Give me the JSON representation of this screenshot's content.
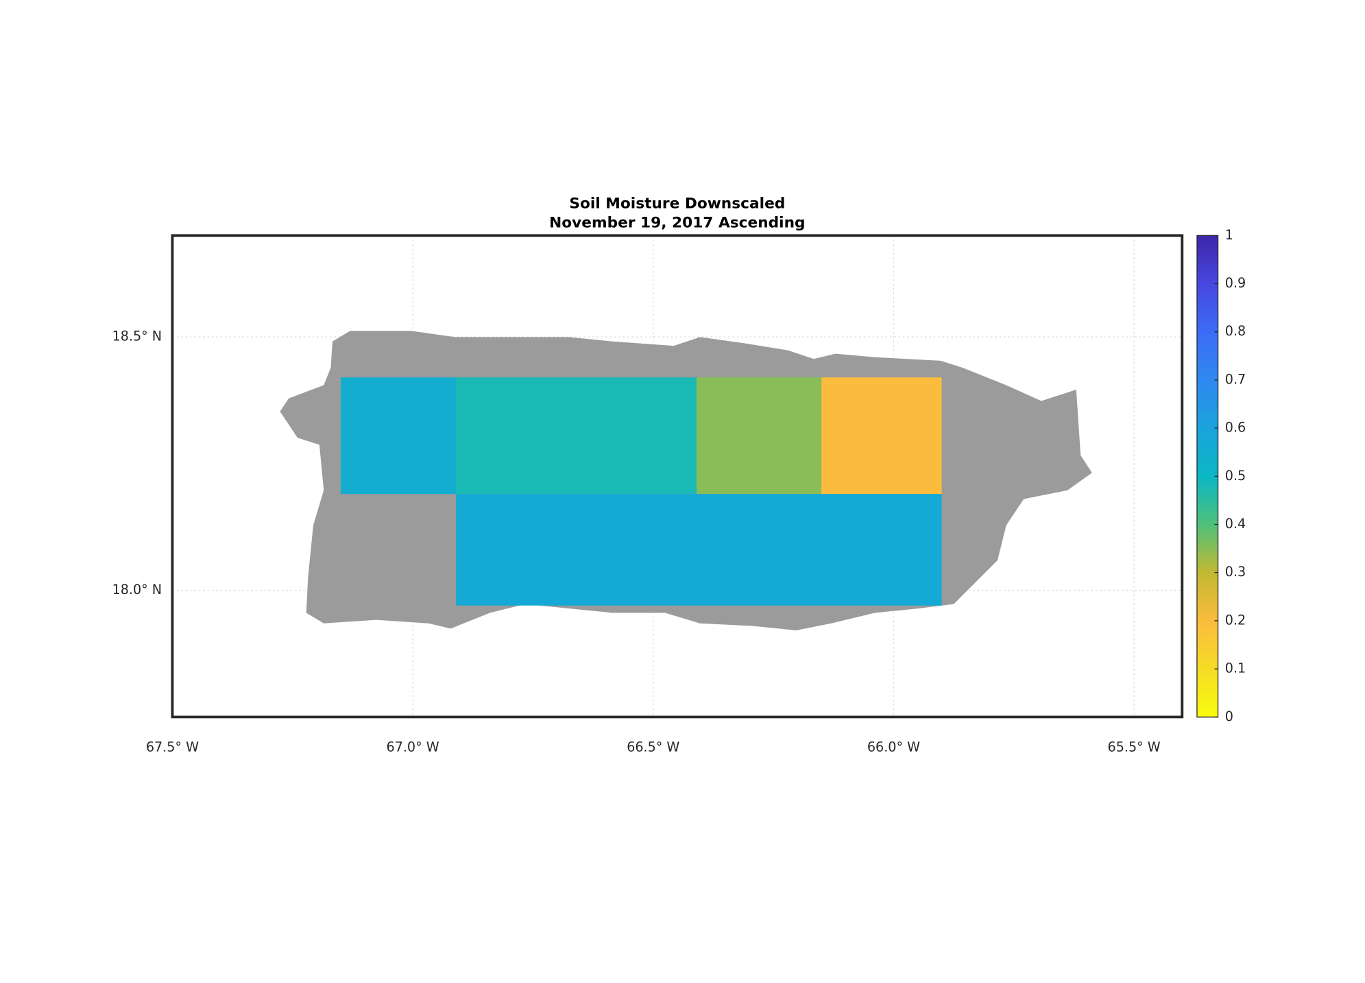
{
  "chart_data": {
    "type": "map",
    "title": "Soil Moisture Downscaled",
    "subtitle": "November 19, 2017 Ascending",
    "xlim": [
      -67.5,
      -65.4
    ],
    "ylim": [
      17.75,
      18.7
    ],
    "xticks": [
      {
        "value": -67.5,
        "label": "67.5° W"
      },
      {
        "value": -67.0,
        "label": "67.0° W"
      },
      {
        "value": -66.5,
        "label": "66.5° W"
      },
      {
        "value": -66.0,
        "label": "66.0° W"
      },
      {
        "value": -65.5,
        "label": "65.5° W"
      }
    ],
    "yticks": [
      {
        "value": 18.0,
        "label": "18.0° N"
      },
      {
        "value": 18.5,
        "label": "18.5° N"
      }
    ],
    "grid": true,
    "land_color": "#9b9b9b",
    "tiles": [
      {
        "lon": [
          -67.15,
          -66.91
        ],
        "lat": [
          18.19,
          18.42
        ],
        "value": 0.55
      },
      {
        "lon": [
          -66.91,
          -66.41
        ],
        "lat": [
          18.19,
          18.42
        ],
        "value": 0.48
      },
      {
        "lon": [
          -66.41,
          -66.15
        ],
        "lat": [
          18.19,
          18.42
        ],
        "value": 0.35
      },
      {
        "lon": [
          -66.15,
          -65.9
        ],
        "lat": [
          18.19,
          18.42
        ],
        "value": 0.2
      },
      {
        "lon": [
          -66.91,
          -65.9
        ],
        "lat": [
          17.97,
          18.19
        ],
        "value": 0.57
      }
    ],
    "clim": [
      0,
      1
    ],
    "cticks": [
      0,
      0.1,
      0.2,
      0.3,
      0.4,
      0.5,
      0.6,
      0.7,
      0.8,
      0.9,
      1
    ],
    "colormap": [
      "#f9fb0e",
      "#f5dc26",
      "#fbbc3d",
      "#c2b933",
      "#4fc07a",
      "#0bb7c4",
      "#1aa3dc",
      "#2f88ef",
      "#3c6cf6",
      "#4747e0",
      "#3d26a8"
    ]
  }
}
